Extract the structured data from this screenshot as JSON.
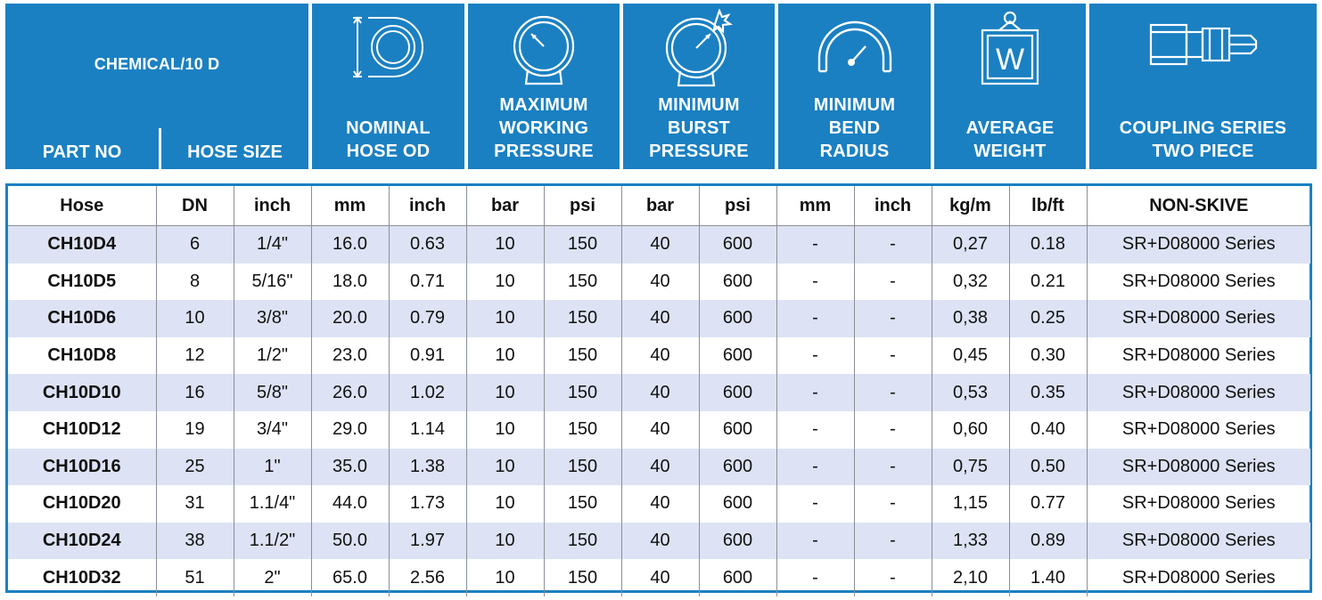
{
  "header": {
    "table_title": "CHEMICAL/10 D",
    "part_no_label": "PART NO",
    "hose_size_label": "HOSE SIZE",
    "columns": [
      {
        "label": "NOMINAL\nHOSE OD",
        "icon": "hose-diameter-icon"
      },
      {
        "label": "MAXIMUM\nWORKING\nPRESSURE",
        "icon": "pressure-gauge-icon"
      },
      {
        "label": "MINIMUM\nBURST\nPRESSURE",
        "icon": "burst-gauge-icon"
      },
      {
        "label": "MINIMUM\nBEND\nRADIUS",
        "icon": "bend-radius-icon"
      },
      {
        "label": "AVERAGE\nWEIGHT",
        "icon": "weight-icon"
      },
      {
        "label": "COUPLING SERIES\nTWO PIECE",
        "icon": "coupling-icon"
      }
    ]
  },
  "units": [
    "Hose",
    "DN",
    "inch",
    "mm",
    "inch",
    "bar",
    "psi",
    "bar",
    "psi",
    "mm",
    "inch",
    "kg/m",
    "lb/ft",
    "NON-SKIVE"
  ],
  "rows": [
    [
      "CH10D4",
      "6",
      "1/4\"",
      "16.0",
      "0.63",
      "10",
      "150",
      "40",
      "600",
      "-",
      "-",
      "0,27",
      "0.18",
      "SR+D08000 Series"
    ],
    [
      "CH10D5",
      "8",
      "5/16\"",
      "18.0",
      "0.71",
      "10",
      "150",
      "40",
      "600",
      "-",
      "-",
      "0,32",
      "0.21",
      "SR+D08000 Series"
    ],
    [
      "CH10D6",
      "10",
      "3/8\"",
      "20.0",
      "0.79",
      "10",
      "150",
      "40",
      "600",
      "-",
      "-",
      "0,38",
      "0.25",
      "SR+D08000 Series"
    ],
    [
      "CH10D8",
      "12",
      "1/2\"",
      "23.0",
      "0.91",
      "10",
      "150",
      "40",
      "600",
      "-",
      "-",
      "0,45",
      "0.30",
      "SR+D08000 Series"
    ],
    [
      "CH10D10",
      "16",
      "5/8\"",
      "26.0",
      "1.02",
      "10",
      "150",
      "40",
      "600",
      "-",
      "-",
      "0,53",
      "0.35",
      "SR+D08000 Series"
    ],
    [
      "CH10D12",
      "19",
      "3/4\"",
      "29.0",
      "1.14",
      "10",
      "150",
      "40",
      "600",
      "-",
      "-",
      "0,60",
      "0.40",
      "SR+D08000 Series"
    ],
    [
      "CH10D16",
      "25",
      "1\"",
      "35.0",
      "1.38",
      "10",
      "150",
      "40",
      "600",
      "-",
      "-",
      "0,75",
      "0.50",
      "SR+D08000 Series"
    ],
    [
      "CH10D20",
      "31",
      "1.1/4\"",
      "44.0",
      "1.73",
      "10",
      "150",
      "40",
      "600",
      "-",
      "-",
      "1,15",
      "0.77",
      "SR+D08000 Series"
    ],
    [
      "CH10D24",
      "38",
      "1.1/2\"",
      "50.0",
      "1.97",
      "10",
      "150",
      "40",
      "600",
      "-",
      "-",
      "1,33",
      "0.89",
      "SR+D08000 Series"
    ],
    [
      "CH10D32",
      "51",
      "2\"",
      "65.0",
      "2.56",
      "10",
      "150",
      "40",
      "600",
      "-",
      "-",
      "2,10",
      "1.40",
      "SR+D08000 Series"
    ]
  ],
  "colors": {
    "header_blue": "#1a80c2",
    "row_stripe": "#dde3f4",
    "text": "#111111"
  }
}
